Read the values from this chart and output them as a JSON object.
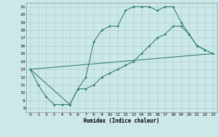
{
  "xlabel": "Humidex (Indice chaleur)",
  "background_color": "#cde8e8",
  "grid_color": "#aecece",
  "line_color": "#2e7d6e",
  "xlim": [
    -0.5,
    23.5
  ],
  "ylim": [
    7.5,
    21.5
  ],
  "yticks": [
    8,
    9,
    10,
    11,
    12,
    13,
    14,
    15,
    16,
    17,
    18,
    19,
    20,
    21
  ],
  "xticks": [
    0,
    1,
    2,
    3,
    4,
    5,
    6,
    7,
    8,
    9,
    10,
    11,
    12,
    13,
    14,
    15,
    16,
    17,
    18,
    19,
    20,
    21,
    22,
    23
  ],
  "line1_x": [
    0,
    1,
    2,
    3,
    4,
    5,
    6,
    7,
    8,
    9,
    10,
    11,
    12,
    13,
    14,
    15,
    16,
    17,
    18,
    19,
    20,
    21,
    22,
    23
  ],
  "line1_y": [
    13,
    11,
    9.5,
    8.5,
    8.5,
    8.5,
    10.5,
    10.5,
    11,
    12,
    12.5,
    13,
    13.5,
    14,
    15,
    16,
    17,
    17.5,
    18.5,
    18.5,
    17.5,
    16,
    15.5,
    15
  ],
  "line2_x": [
    0,
    5,
    6,
    7,
    8,
    9,
    10,
    11,
    12,
    13,
    14,
    15,
    16,
    17,
    18,
    19,
    20,
    21,
    22
  ],
  "line2_y": [
    13,
    8.5,
    10.5,
    12,
    16.5,
    18,
    18.5,
    18.5,
    20.5,
    21,
    21,
    21,
    20.5,
    21,
    21,
    19,
    17.5,
    16,
    15.5
  ],
  "line3_x": [
    0,
    23
  ],
  "line3_y": [
    13,
    15
  ]
}
